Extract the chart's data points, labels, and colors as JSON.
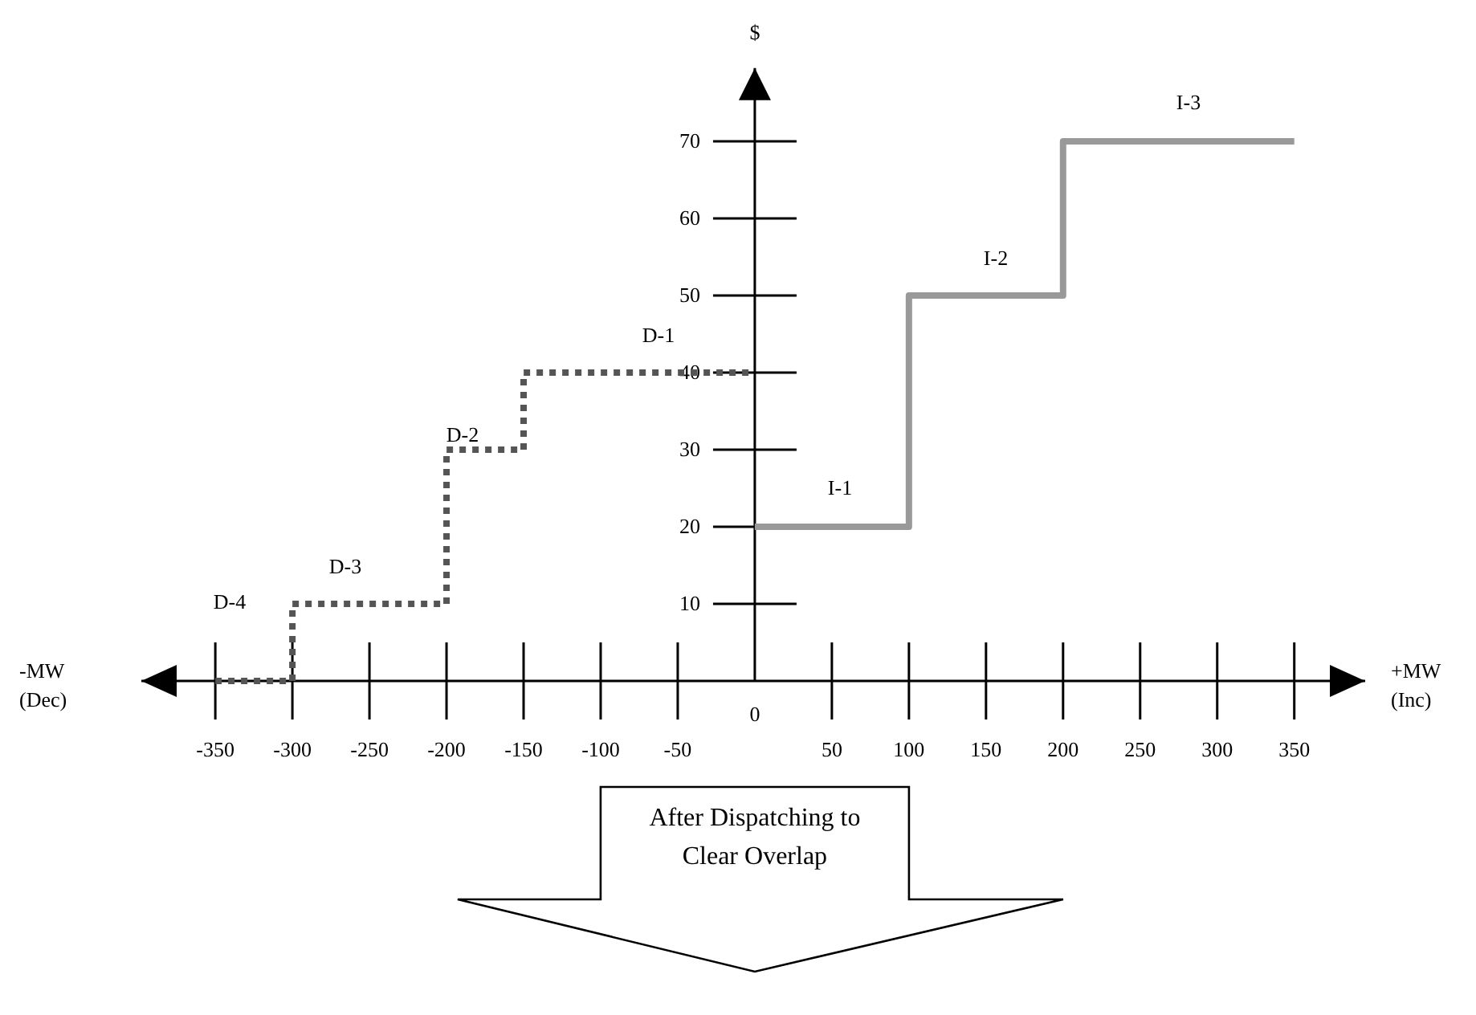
{
  "chart_data": {
    "type": "step",
    "ylabel": "$",
    "xlabel": "+MW (Inc)",
    "xlim": [
      -398,
      396
    ],
    "ylim": [
      0,
      79.5
    ],
    "xticks": [
      -350,
      -300,
      -250,
      -200,
      -150,
      -100,
      -50,
      50,
      100,
      150,
      200,
      250,
      300,
      350
    ],
    "yticks": [
      10,
      20,
      30,
      40,
      50,
      60,
      70
    ],
    "grid": false,
    "marker": "none",
    "series": [
      {
        "color": "#555555",
        "line_style": "dotted",
        "x": [
          -350,
          -300,
          -200,
          -150,
          0
        ],
        "values": [
          0,
          10,
          30,
          40,
          40
        ]
      },
      {
        "color": "#999999",
        "line_style": "solid",
        "x": [
          0,
          100,
          200,
          350
        ],
        "values": [
          20,
          50,
          70,
          70
        ]
      }
    ],
    "annotations": [
      "D-4",
      "D-3",
      "D-2",
      "D-1",
      "I-1",
      "I-2",
      "I-3",
      "-MW (Dec)",
      "0",
      "After Dispatching to Clear Overlap"
    ]
  }
}
